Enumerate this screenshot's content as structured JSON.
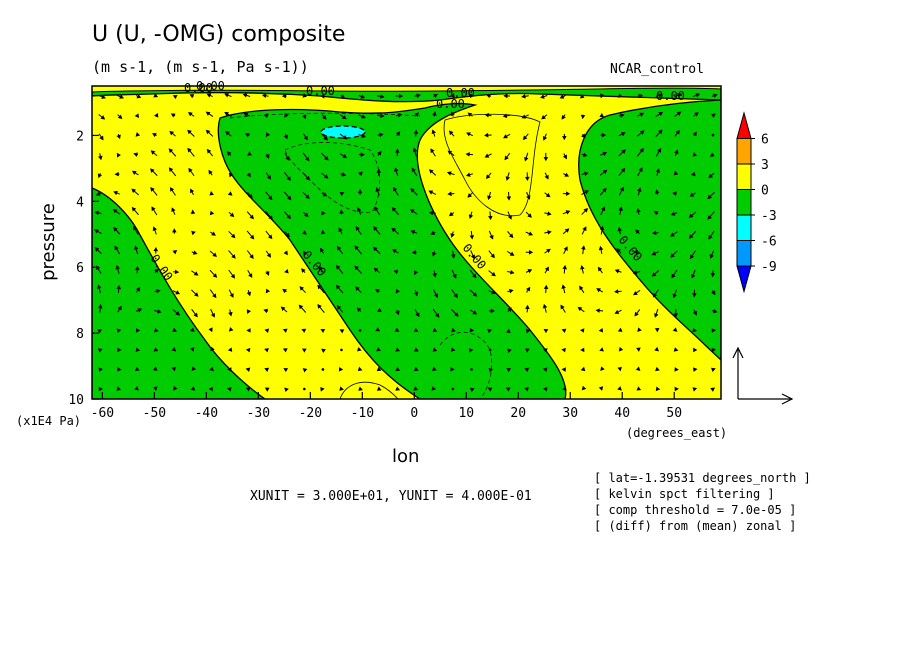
{
  "chart_data": {
    "type": "heatmap",
    "title": "U (U, -OMG) composite",
    "subtitle": "(m s-1, (m s-1, Pa s-1))",
    "run_label": "NCAR_control",
    "xlabel": "lon",
    "ylabel": "pressure",
    "x_unit_label": "(degrees_east)",
    "y_unit_label": "(x1E4 Pa)",
    "xlim": [
      -62,
      59
    ],
    "ylim": [
      10,
      0.5
    ],
    "x_ticks": [
      -60,
      -50,
      -40,
      -30,
      -20,
      -10,
      0,
      10,
      20,
      30,
      40,
      50
    ],
    "x_tick_labels": [
      "-60",
      "-50",
      "-40",
      "-30",
      "-20",
      "-10",
      "0",
      "10",
      "20",
      "30",
      "40",
      "50"
    ],
    "y_ticks": [
      2,
      4,
      6,
      8,
      10
    ],
    "y_tick_labels": [
      "2",
      "4",
      "6",
      "8",
      "10"
    ],
    "colorbar": {
      "levels": [
        6,
        3,
        0,
        -3,
        -6,
        -9
      ],
      "level_labels": [
        "6",
        "3",
        "0",
        "-3",
        "-6",
        "-9"
      ],
      "colors": [
        "#ff0000",
        "#ffa500",
        "#ffff00",
        "#00cc00",
        "#00ffff",
        "#0099ff",
        "#0000ff"
      ]
    },
    "contour_labels": [
      "0.00",
      "0.00",
      "0.00",
      "0.00",
      "0.00",
      "0.00",
      "0.00",
      "0.00",
      "0.00",
      "0.00"
    ],
    "vector_units": "XUNIT = 3.000E+01, YUNIT = 4.000E-01",
    "notes": [
      "[ lat=-1.39531 degrees_north ]",
      "[ kelvin spct filtering ]",
      "[ comp threshold = 7.0e-05 ]",
      "[ (diff) from (mean) zonal ]"
    ]
  }
}
